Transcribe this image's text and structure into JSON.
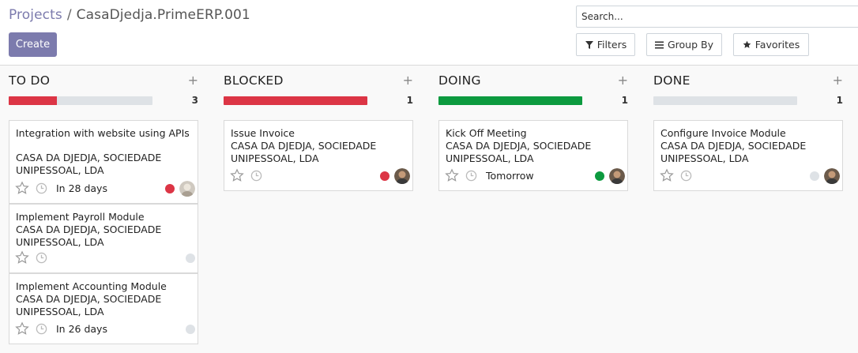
{
  "breadcrumb": {
    "parent": "Projects",
    "separator": "/",
    "current": "CasaDjedja.PrimeERP.001"
  },
  "create_label": "Create",
  "search": {
    "placeholder": "Search..."
  },
  "toolbar": {
    "filters": "Filters",
    "group_by": "Group By",
    "favorites": "Favorites"
  },
  "colors": {
    "accent": "#7c7bad",
    "red": "#dc3545",
    "green": "#28a745",
    "grey": "#dee2e6"
  },
  "columns": [
    {
      "title": "TO DO",
      "add": "+",
      "count": "3",
      "cards": [
        {
          "name": "Integration with website using APIs",
          "partner": "CASA DA DJEDJA, SOCIEDADE UNIPESSOAL, LDA",
          "deadline": "In 28 days",
          "status": "red",
          "avatar": "light"
        },
        {
          "name": "Implement Payroll Module",
          "partner": "CASA DA DJEDJA, SOCIEDADE UNIPESSOAL, LDA",
          "deadline": "",
          "status": "grey",
          "avatar": ""
        },
        {
          "name": "Implement Accounting Module",
          "partner": "CASA DA DJEDJA, SOCIEDADE UNIPESSOAL, LDA",
          "deadline": "In 26 days",
          "status": "grey",
          "avatar": ""
        }
      ]
    },
    {
      "title": "BLOCKED",
      "add": "+",
      "count": "1",
      "cards": [
        {
          "name": "Issue Invoice",
          "partner": "CASA DA DJEDJA, SOCIEDADE UNIPESSOAL, LDA",
          "deadline": "",
          "status": "red",
          "avatar": "dark"
        }
      ]
    },
    {
      "title": "DOING",
      "add": "+",
      "count": "1",
      "cards": [
        {
          "name": "Kick Off Meeting",
          "partner": "CASA DA DJEDJA, SOCIEDADE UNIPESSOAL, LDA",
          "deadline": "Tomorrow",
          "status": "green",
          "avatar": "dark"
        }
      ]
    },
    {
      "title": "DONE",
      "add": "+",
      "count": "1",
      "cards": [
        {
          "name": "Configure Invoice Module",
          "partner": "CASA DA DJEDJA, SOCIEDADE UNIPESSOAL, LDA",
          "deadline": "",
          "status": "grey",
          "avatar": "dark"
        }
      ]
    }
  ]
}
